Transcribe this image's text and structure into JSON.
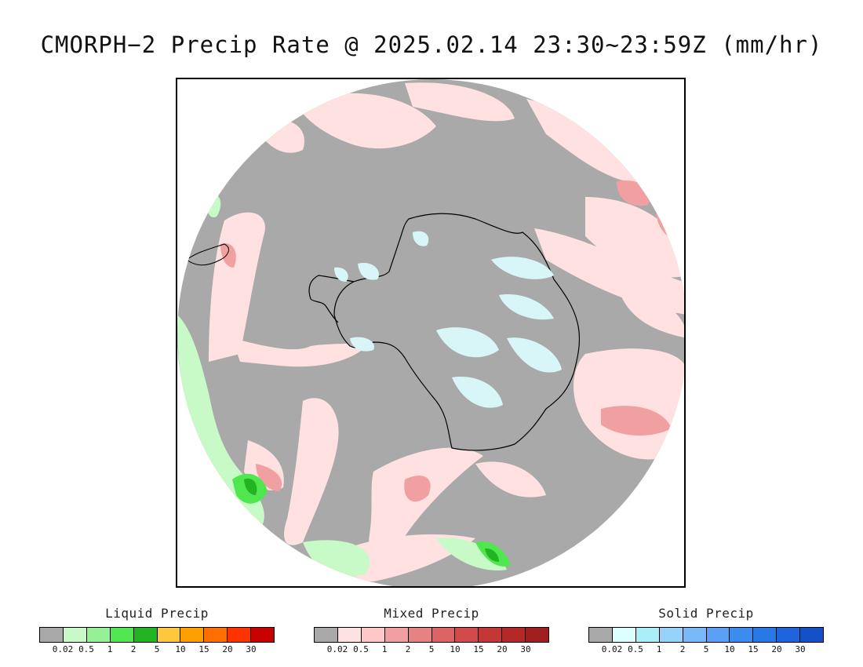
{
  "title": "CMORPH−2 Precip Rate @ 2025.02.14 23:30~23:59Z (mm/hr)",
  "map": {
    "projection": "south-polar-stereographic",
    "background_color": "#a9a9a9",
    "land_ice_color": "#d8f6f8",
    "coastline_color": "#000000"
  },
  "legends": [
    {
      "name": "liquid",
      "title": "Liquid Precip",
      "ticks": [
        "0.02",
        "0.5",
        "1",
        "2",
        "5",
        "10",
        "15",
        "20",
        "30"
      ],
      "colors": [
        "#a9a9a9",
        "#c8fac8",
        "#96f096",
        "#50e650",
        "#23b423",
        "#ffc83c",
        "#ffa000",
        "#ff6e00",
        "#ff3200",
        "#c80000"
      ]
    },
    {
      "name": "mixed",
      "title": "Mixed Precip",
      "ticks": [
        "0.02",
        "0.5",
        "1",
        "2",
        "5",
        "10",
        "15",
        "20",
        "30"
      ],
      "colors": [
        "#a9a9a9",
        "#ffe1e1",
        "#ffc8c8",
        "#f0a0a0",
        "#e68282",
        "#dc6464",
        "#d24b4b",
        "#c33737",
        "#b42828",
        "#a01e1e"
      ]
    },
    {
      "name": "solid",
      "title": "Solid Precip",
      "ticks": [
        "0.02",
        "0.5",
        "1",
        "2",
        "5",
        "10",
        "15",
        "20",
        "30"
      ],
      "colors": [
        "#a9a9a9",
        "#dcffff",
        "#aaeefa",
        "#96d2fa",
        "#78b9fa",
        "#5aa0f5",
        "#3c8cf0",
        "#2878e6",
        "#1e64dc",
        "#1450c8"
      ]
    }
  ]
}
